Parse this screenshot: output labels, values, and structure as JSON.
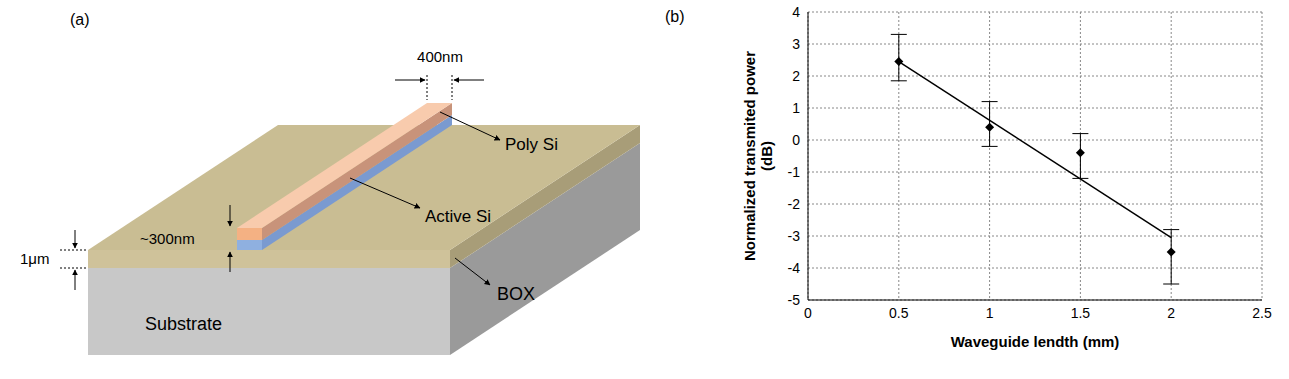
{
  "diagram": {
    "label": "(a)",
    "width_label": "400nm",
    "poly_label": "Poly Si",
    "active_label": "Active Si",
    "box_label": "BOX",
    "substrate_label": "Substrate",
    "box_thickness_label": "1μm",
    "height_label": "~300nm"
  },
  "chart_data": {
    "type": "scatter",
    "label": "(b)",
    "xlabel": "Waveguide lendth (mm)",
    "ylabel": "Normalized transmited power (dB)",
    "xlim": [
      0,
      2.5
    ],
    "xticks": [
      0,
      0.5,
      1,
      1.5,
      2,
      2.5
    ],
    "ylim": [
      -5,
      4
    ],
    "yticks": [
      -5,
      -4,
      -3,
      -2,
      -1,
      0,
      1,
      2,
      3,
      4
    ],
    "grid": true,
    "series": [
      {
        "type": "scatter",
        "marker": "diamond",
        "color": "#000000",
        "x": [
          0.5,
          1,
          1.5,
          2
        ],
        "values": [
          2.45,
          0.4,
          -0.4,
          -3.5
        ],
        "errors": [
          [
            0.6,
            0.85
          ],
          [
            0.6,
            0.8
          ],
          [
            0.8,
            0.6
          ],
          [
            1.0,
            0.7
          ]
        ]
      },
      {
        "type": "line",
        "color": "#000000",
        "x": [
          0.5,
          2
        ],
        "values": [
          2.45,
          -3.05
        ]
      }
    ]
  }
}
